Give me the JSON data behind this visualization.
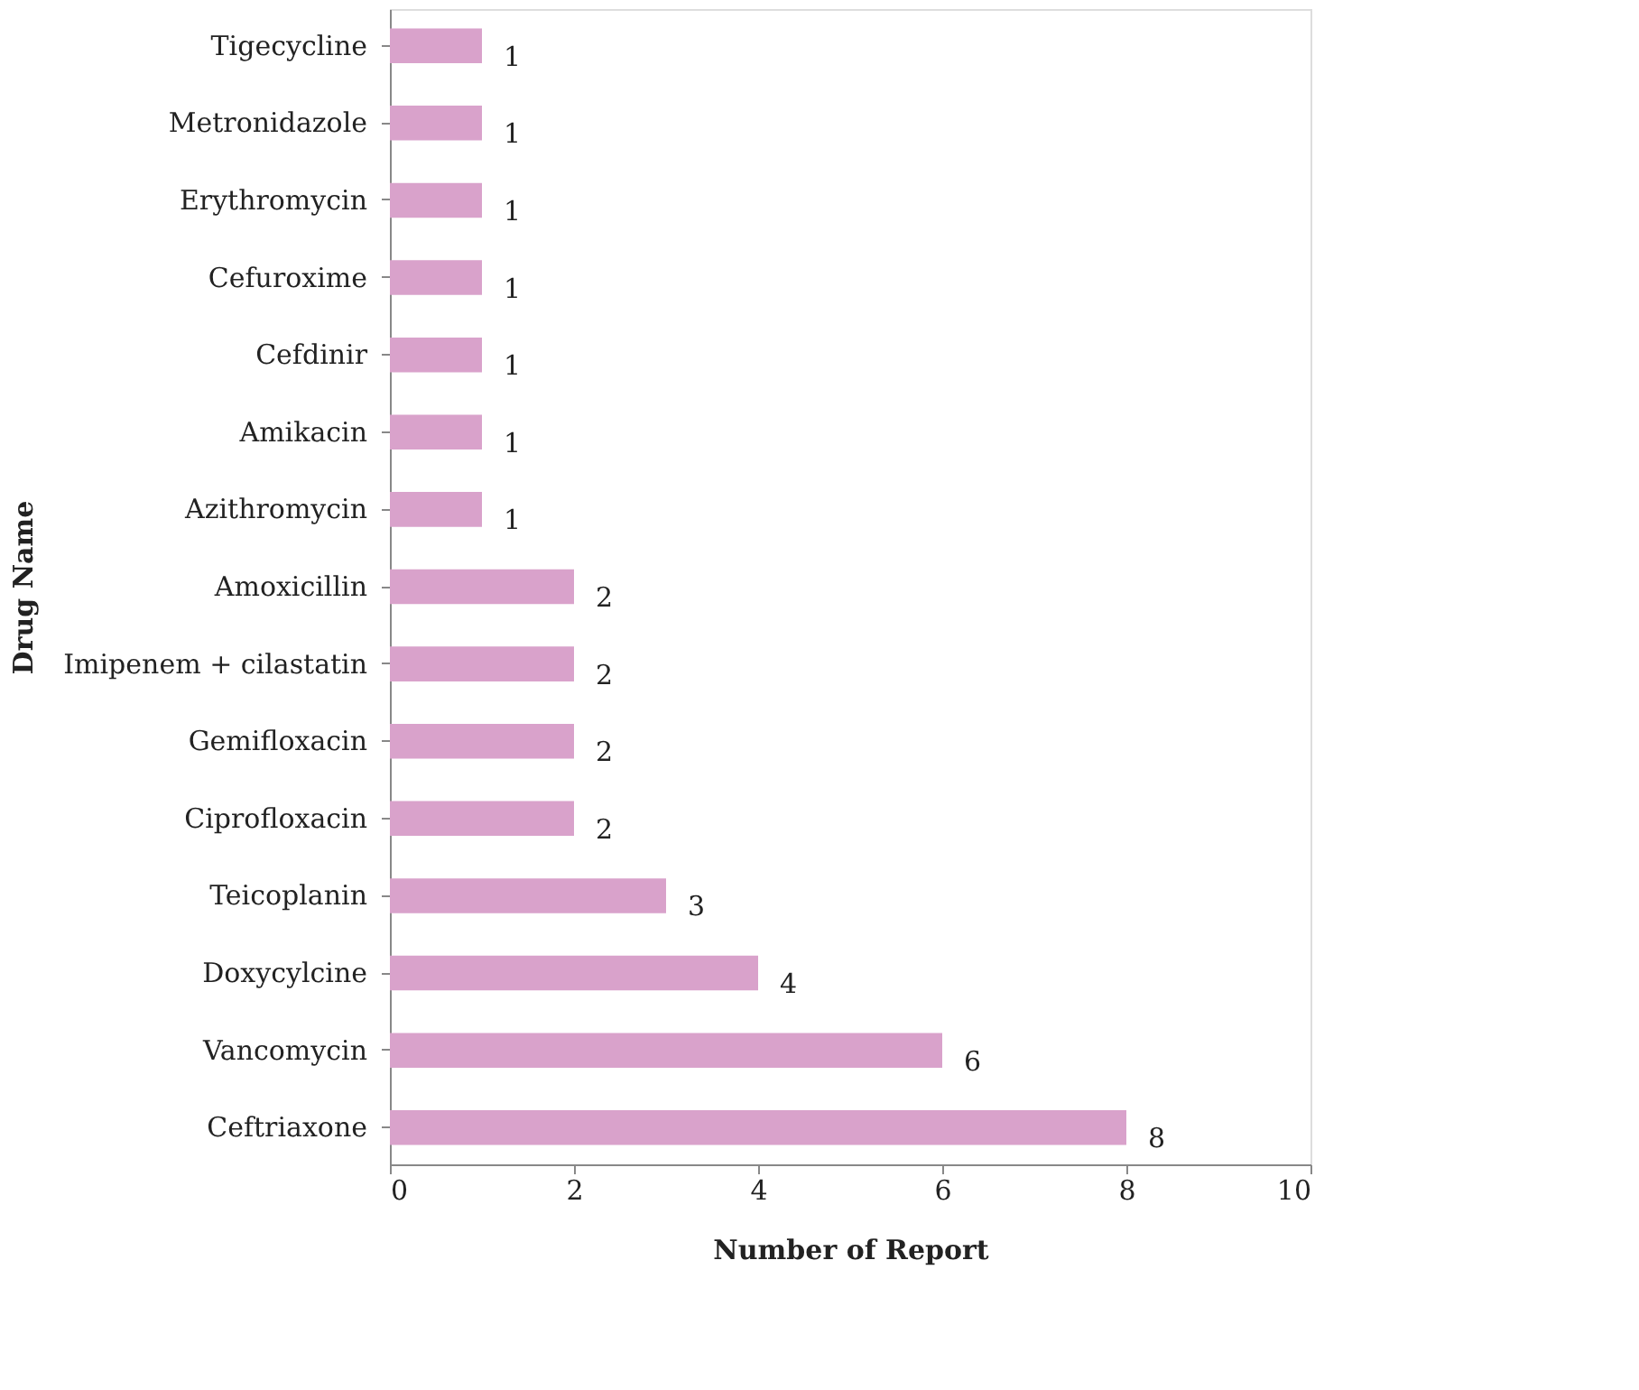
{
  "chart_data": {
    "type": "bar",
    "orientation": "horizontal",
    "xlabel": "Number of Report",
    "ylabel": "Drug Name",
    "categories": [
      "Tigecycline",
      "Metronidazole",
      "Erythromycin",
      "Cefuroxime",
      "Cefdinir",
      "Amikacin",
      "Azithromycin",
      "Amoxicillin",
      "Imipenem + cilastatin",
      "Gemifloxacin",
      "Ciprofloxacin",
      "Teicoplanin",
      "Doxycylcine",
      "Vancomycin",
      "Ceftriaxone"
    ],
    "values": [
      1,
      1,
      1,
      1,
      1,
      1,
      1,
      2,
      2,
      2,
      2,
      3,
      4,
      6,
      8
    ],
    "color": "#d9a2cb",
    "xlim": [
      0,
      10
    ],
    "xticks": [
      0,
      2,
      4,
      6,
      8,
      10
    ],
    "grid": false,
    "data_labels": true
  }
}
